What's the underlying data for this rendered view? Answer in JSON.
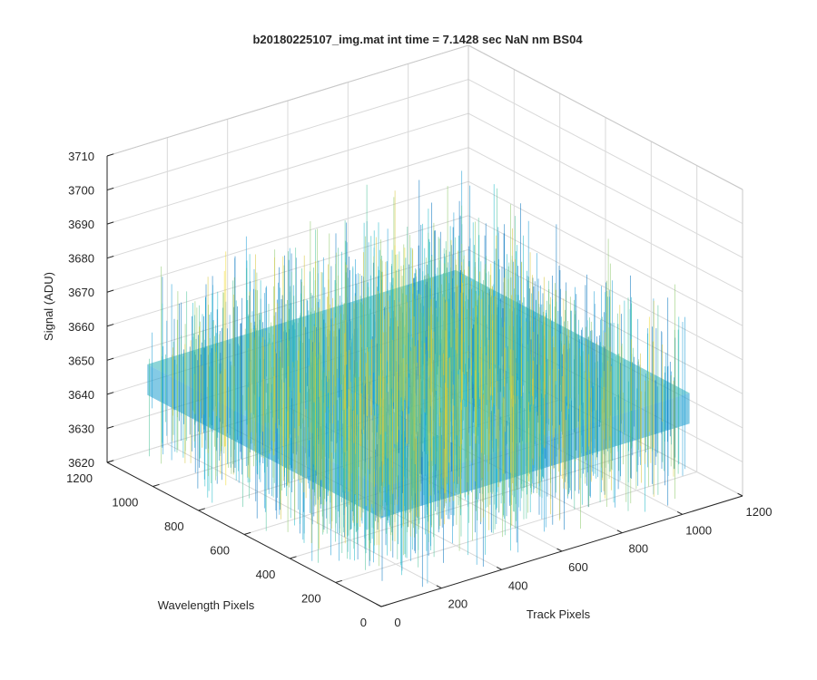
{
  "chart_data": {
    "type": "surface",
    "title": "b20180225107_img.mat int time = 7.1428 sec  NaN nm BS04",
    "xlabel": "Track Pixels",
    "ylabel": "Wavelength Pixels",
    "zlabel": "Signal (ADU)",
    "xlim": [
      0,
      1200
    ],
    "ylim": [
      0,
      1200
    ],
    "zlim": [
      3620,
      3710
    ],
    "xticks": [
      "0",
      "200",
      "400",
      "600",
      "800",
      "1000",
      "1200"
    ],
    "yticks": [
      "0",
      "200",
      "400",
      "600",
      "800",
      "1000",
      "1200"
    ],
    "zticks": [
      "3620",
      "3630",
      "3640",
      "3650",
      "3660",
      "3670",
      "3680",
      "3690",
      "3700",
      "3710"
    ],
    "data_extent": {
      "x": [
        0,
        1024
      ],
      "y": [
        0,
        1024
      ]
    },
    "signal_mean": 3655,
    "signal_range": [
      3622,
      3705
    ],
    "colormap": "parula",
    "colors": [
      "#0072bd",
      "#1a9cd6",
      "#1fb8c8",
      "#4cc39a",
      "#8cc86a",
      "#d6c53a",
      "#f0d82a"
    ],
    "grid": true
  }
}
